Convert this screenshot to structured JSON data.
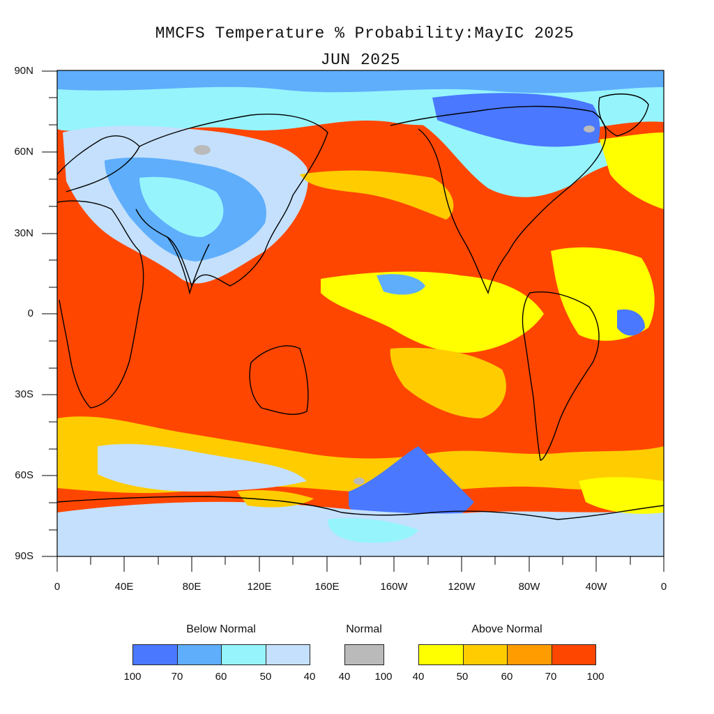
{
  "title_line1": "MMCFS Temperature % Probability:MayIC 2025",
  "title_line2": "JUN 2025",
  "lat_labels": [
    "90N",
    "60N",
    "30N",
    "0",
    "30S",
    "60S",
    "90S"
  ],
  "lon_labels": [
    "0",
    "40E",
    "80E",
    "120E",
    "160E",
    "160W",
    "120W",
    "80W",
    "40W",
    "0"
  ],
  "legend": {
    "below": {
      "title": "Below Normal",
      "colors": [
        "#4a78ff",
        "#5eaefc",
        "#96f4fc",
        "#c4e0fc"
      ],
      "ticks": [
        "100",
        "70",
        "60",
        "50",
        "40"
      ]
    },
    "normal": {
      "title": "Normal",
      "colors": [
        "#bababa"
      ],
      "ticks": [
        "40",
        "100"
      ]
    },
    "above": {
      "title": "Above Normal",
      "colors": [
        "#ffff00",
        "#ffcc00",
        "#ff9c00",
        "#ff4600"
      ],
      "ticks": [
        "40",
        "50",
        "60",
        "70",
        "100"
      ]
    }
  }
}
